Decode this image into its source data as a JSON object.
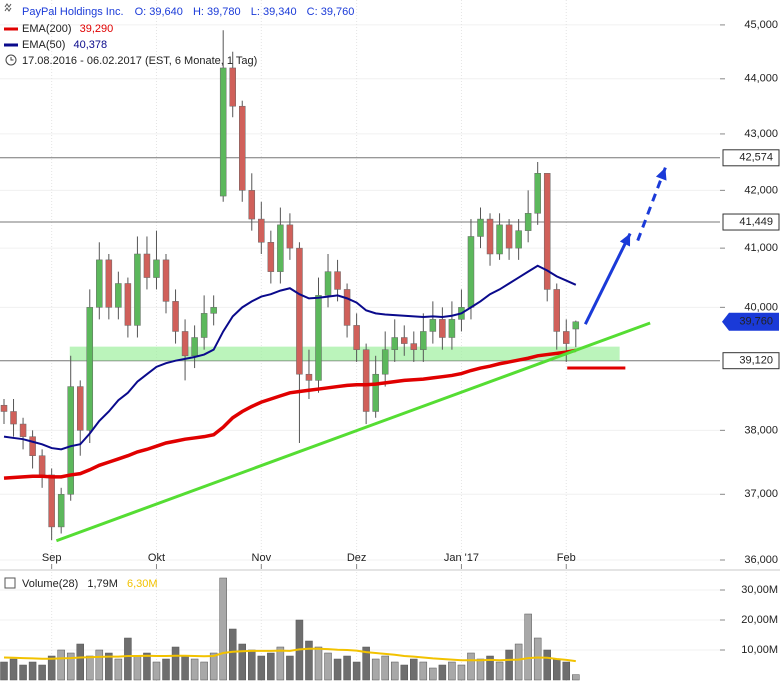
{
  "chart_data": [
    {
      "type": "candlestick",
      "title": "PayPal Holdings Inc.",
      "ohlc_labels": [
        "O: 39,640",
        "H: 39,780",
        "L: 39,340",
        "C: 39,760"
      ],
      "subtitle": "17.08.2016 - 06.02.2017 (EST, 6 Monate, 1 Tag)",
      "categories": [
        null,
        null,
        null,
        null,
        null,
        "Sep",
        null,
        null,
        null,
        null,
        null,
        null,
        null,
        null,
        null,
        null,
        "Okt",
        null,
        null,
        null,
        null,
        null,
        null,
        null,
        null,
        null,
        null,
        "Nov",
        null,
        null,
        null,
        null,
        null,
        null,
        null,
        null,
        null,
        "Dez",
        null,
        null,
        null,
        null,
        null,
        null,
        null,
        null,
        null,
        null,
        "Jan '17",
        null,
        null,
        null,
        null,
        null,
        null,
        null,
        null,
        null,
        null,
        "Feb",
        null
      ],
      "open": [
        38.4,
        38.3,
        38.1,
        37.9,
        37.6,
        37.3,
        36.5,
        37.0,
        38.7,
        38.0,
        40.0,
        40.8,
        40.0,
        40.4,
        39.7,
        40.9,
        40.5,
        40.8,
        40.1,
        39.6,
        39.2,
        39.5,
        39.9,
        41.9,
        44.2,
        43.5,
        42.0,
        41.5,
        41.1,
        40.6,
        41.4,
        41.0,
        38.9,
        38.8,
        40.2,
        40.6,
        40.3,
        39.7,
        39.3,
        38.3,
        38.9,
        39.3,
        39.5,
        39.4,
        39.3,
        39.6,
        39.8,
        39.5,
        39.8,
        40.0,
        41.2,
        41.5,
        40.9,
        41.4,
        41.0,
        41.3,
        41.6,
        42.3,
        40.3,
        39.6,
        39.64
      ],
      "high": [
        38.5,
        38.5,
        38.2,
        38.0,
        37.7,
        37.4,
        37.1,
        39.2,
        38.8,
        40.3,
        41.1,
        40.9,
        40.6,
        40.5,
        41.2,
        41.2,
        41.3,
        40.9,
        40.3,
        39.8,
        39.7,
        40.2,
        40.2,
        44.9,
        44.5,
        43.6,
        42.3,
        41.8,
        41.3,
        41.7,
        41.6,
        41.1,
        39.3,
        40.5,
        40.9,
        40.8,
        40.4,
        39.9,
        39.4,
        39.2,
        39.6,
        39.8,
        39.7,
        39.6,
        39.9,
        40.1,
        40.0,
        40.1,
        40.3,
        41.5,
        41.7,
        41.6,
        41.6,
        41.5,
        41.5,
        42.0,
        42.5,
        42.3,
        40.4,
        39.8,
        39.78
      ],
      "low": [
        38.1,
        37.9,
        37.7,
        37.4,
        37.1,
        36.3,
        36.4,
        36.9,
        37.6,
        37.8,
        39.8,
        39.8,
        39.8,
        39.5,
        39.5,
        40.3,
        40.3,
        39.9,
        39.4,
        38.8,
        39.0,
        39.3,
        39.7,
        41.8,
        43.3,
        41.8,
        41.3,
        40.9,
        40.4,
        40.4,
        40.8,
        37.8,
        38.5,
        38.6,
        40.0,
        40.1,
        39.5,
        39.1,
        38.1,
        38.2,
        38.7,
        39.1,
        39.2,
        39.1,
        39.1,
        39.4,
        39.3,
        39.3,
        39.6,
        39.8,
        41.0,
        40.7,
        40.8,
        40.8,
        40.8,
        41.1,
        41.4,
        40.1,
        39.3,
        39.1,
        39.34
      ],
      "close": [
        38.3,
        38.1,
        37.9,
        37.6,
        37.3,
        36.5,
        37.0,
        38.7,
        38.0,
        40.0,
        40.8,
        40.0,
        40.4,
        39.7,
        40.9,
        40.5,
        40.8,
        40.1,
        39.6,
        39.2,
        39.5,
        39.9,
        40.0,
        44.2,
        43.5,
        42.0,
        41.5,
        41.1,
        40.6,
        41.4,
        41.0,
        38.9,
        38.8,
        40.2,
        40.6,
        40.3,
        39.7,
        39.3,
        38.3,
        38.9,
        39.3,
        39.5,
        39.4,
        39.3,
        39.6,
        39.8,
        39.5,
        39.8,
        40.0,
        41.2,
        41.5,
        40.9,
        41.4,
        41.0,
        41.3,
        41.6,
        42.3,
        40.3,
        39.6,
        39.4,
        39.76
      ],
      "up_color": "#5cb85c",
      "down_color": "#d0605a",
      "log_scale": true,
      "grid": true,
      "ylim": [
        35.88,
        45.47
      ],
      "yticks": [
        {
          "value": 36,
          "label": "36,000"
        },
        {
          "value": 37,
          "label": "37,000"
        },
        {
          "value": 38,
          "label": "38,000"
        },
        {
          "value": 40,
          "label": "40,000"
        },
        {
          "value": 41,
          "label": "41,000"
        },
        {
          "value": 42,
          "label": "42,000"
        },
        {
          "value": 43,
          "label": "43,000"
        },
        {
          "value": 44,
          "label": "44,000"
        },
        {
          "value": 45,
          "label": "45,000"
        }
      ],
      "series": [
        {
          "name": "EMA(200)",
          "value_label": "39,290",
          "color": "#e00000",
          "values": [
            37.25,
            37.26,
            37.27,
            37.28,
            37.28,
            37.27,
            37.27,
            37.3,
            37.32,
            37.38,
            37.45,
            37.5,
            37.55,
            37.6,
            37.66,
            37.7,
            37.75,
            37.8,
            37.83,
            37.86,
            37.88,
            37.9,
            37.93,
            38.05,
            38.2,
            38.3,
            38.38,
            38.45,
            38.5,
            38.55,
            38.6,
            38.62,
            38.64,
            38.66,
            38.68,
            38.7,
            38.72,
            38.73,
            38.73,
            38.74,
            38.76,
            38.78,
            38.8,
            38.81,
            38.82,
            38.84,
            38.86,
            38.88,
            38.91,
            38.96,
            39.0,
            39.03,
            39.07,
            39.1,
            39.13,
            39.16,
            39.2,
            39.22,
            39.24,
            39.26,
            39.29
          ]
        },
        {
          "name": "EMA(50)",
          "value_label": "40,378",
          "color": "#0a0a8c",
          "values": [
            37.9,
            37.88,
            37.86,
            37.82,
            37.78,
            37.72,
            37.7,
            37.75,
            37.78,
            37.95,
            38.15,
            38.3,
            38.48,
            38.6,
            38.78,
            38.9,
            39.02,
            39.08,
            39.12,
            39.15,
            39.18,
            39.22,
            39.3,
            39.6,
            39.85,
            40.0,
            40.1,
            40.18,
            40.22,
            40.28,
            40.32,
            40.22,
            40.15,
            40.16,
            40.18,
            40.2,
            40.15,
            40.08,
            39.95,
            39.9,
            39.88,
            39.87,
            39.86,
            39.85,
            39.84,
            39.85,
            39.84,
            39.86,
            39.9,
            40.0,
            40.1,
            40.22,
            40.3,
            40.4,
            40.5,
            40.6,
            40.7,
            40.62,
            40.52,
            40.45,
            40.378
          ]
        }
      ],
      "levels": [
        {
          "value": 42.574,
          "label": "42,574"
        },
        {
          "value": 41.449,
          "label": "41,449"
        },
        {
          "value": 39.12,
          "label": "39,120"
        }
      ],
      "last_price": {
        "value": 39.76,
        "label": "39,760",
        "color": "#1a3ad8"
      },
      "drawings": {
        "support_band": {
          "x": [
            6.9,
            64.6
          ],
          "y": [
            39.12,
            39.35
          ],
          "color": "#9ef09e"
        },
        "trendline": {
          "x": [
            5.5,
            67.8
          ],
          "y": [
            36.29,
            39.74
          ],
          "color": "#55dd33"
        },
        "stop_line": {
          "x": [
            59.1,
            65.2
          ],
          "y": [
            39.0,
            39.0
          ],
          "color": "#e00000"
        },
        "arrow": {
          "x": [
            61,
            65.7
          ],
          "y": [
            39.72,
            41.25
          ],
          "color": "#1a3ad8"
        },
        "dashed_arrow": {
          "x": [
            66.5,
            69.4
          ],
          "y": [
            41.13,
            42.4
          ],
          "color": "#1a3ad8"
        }
      }
    },
    {
      "type": "bar",
      "title": "Volume(28)",
      "value_label": "1,79M",
      "color": "#a8a8a8",
      "down_color": "#6e6e6e",
      "values": [
        6,
        7,
        5,
        6,
        5,
        8,
        10,
        9,
        12,
        8,
        10,
        9,
        7,
        14,
        8,
        9,
        6,
        7,
        11,
        8,
        7,
        6,
        9,
        34,
        17,
        12,
        10,
        8,
        9,
        11,
        8,
        20,
        13,
        11,
        9,
        7,
        8,
        6,
        11,
        7,
        8,
        6,
        5,
        7,
        6,
        4,
        5,
        6,
        5,
        9,
        7,
        8,
        6,
        10,
        12,
        22,
        14,
        10,
        7,
        6,
        1.79
      ],
      "average": {
        "color": "#f2c200",
        "value_label": "6,30M",
        "values": [
          7.5,
          7.4,
          7.3,
          7.2,
          7.1,
          7.1,
          7.2,
          7.3,
          7.5,
          7.6,
          7.7,
          7.8,
          7.8,
          8.0,
          8.0,
          8.1,
          8.0,
          8.0,
          8.1,
          8.1,
          8.0,
          7.9,
          8.0,
          9.0,
          9.4,
          9.6,
          9.7,
          9.7,
          9.7,
          9.8,
          9.7,
          10.2,
          10.4,
          10.4,
          10.3,
          10.1,
          10.0,
          9.8,
          9.3,
          9.0,
          8.7,
          8.4,
          8.0,
          7.8,
          7.5,
          7.2,
          7.0,
          6.8,
          6.6,
          6.6,
          6.6,
          6.7,
          6.6,
          6.7,
          6.8,
          7.3,
          7.5,
          7.4,
          7.0,
          6.7,
          6.3
        ]
      },
      "ylim": [
        0,
        34
      ],
      "yticks": [
        {
          "value": 10,
          "label": "10,00M"
        },
        {
          "value": 20,
          "label": "20,00M"
        },
        {
          "value": 30,
          "label": "30,00M"
        }
      ]
    }
  ]
}
